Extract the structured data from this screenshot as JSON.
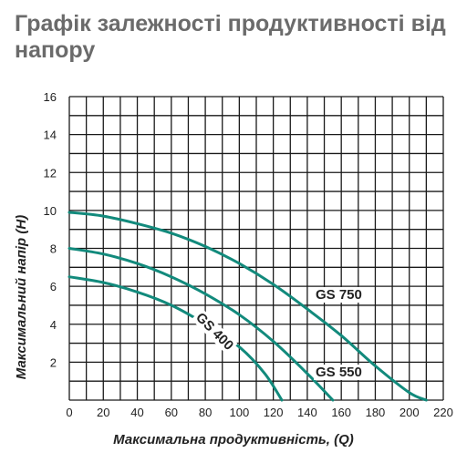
{
  "title": "Графік залежності продуктивності від напору",
  "chart_data": {
    "type": "line",
    "title": "Графік залежності продуктивності від напору",
    "xlabel": "Максимальна продуктивність, (Q)",
    "ylabel": "Максимальний напір (H)",
    "xlim": [
      0,
      220
    ],
    "ylim": [
      0,
      16
    ],
    "x_ticks": [
      0,
      20,
      40,
      60,
      80,
      100,
      120,
      140,
      160,
      180,
      200,
      220
    ],
    "y_ticks": [
      2,
      4,
      6,
      8,
      10,
      12,
      14,
      16
    ],
    "grid": true,
    "line_color": "#128a7c",
    "series": [
      {
        "name": "GS 750",
        "x": [
          0,
          20,
          40,
          60,
          80,
          100,
          120,
          140,
          160,
          180,
          200,
          210
        ],
        "y": [
          9.9,
          9.7,
          9.3,
          8.8,
          8.1,
          7.2,
          6.1,
          4.8,
          3.4,
          1.8,
          0.4,
          0
        ]
      },
      {
        "name": "GS 550",
        "x": [
          0,
          20,
          40,
          60,
          80,
          100,
          120,
          140,
          155
        ],
        "y": [
          8.0,
          7.7,
          7.2,
          6.5,
          5.6,
          4.5,
          3.1,
          1.4,
          0
        ]
      },
      {
        "name": "GS 400",
        "x": [
          0,
          20,
          40,
          60,
          80,
          100,
          115,
          125
        ],
        "y": [
          6.5,
          6.2,
          5.7,
          5.0,
          4.0,
          2.8,
          1.4,
          0
        ]
      }
    ]
  }
}
